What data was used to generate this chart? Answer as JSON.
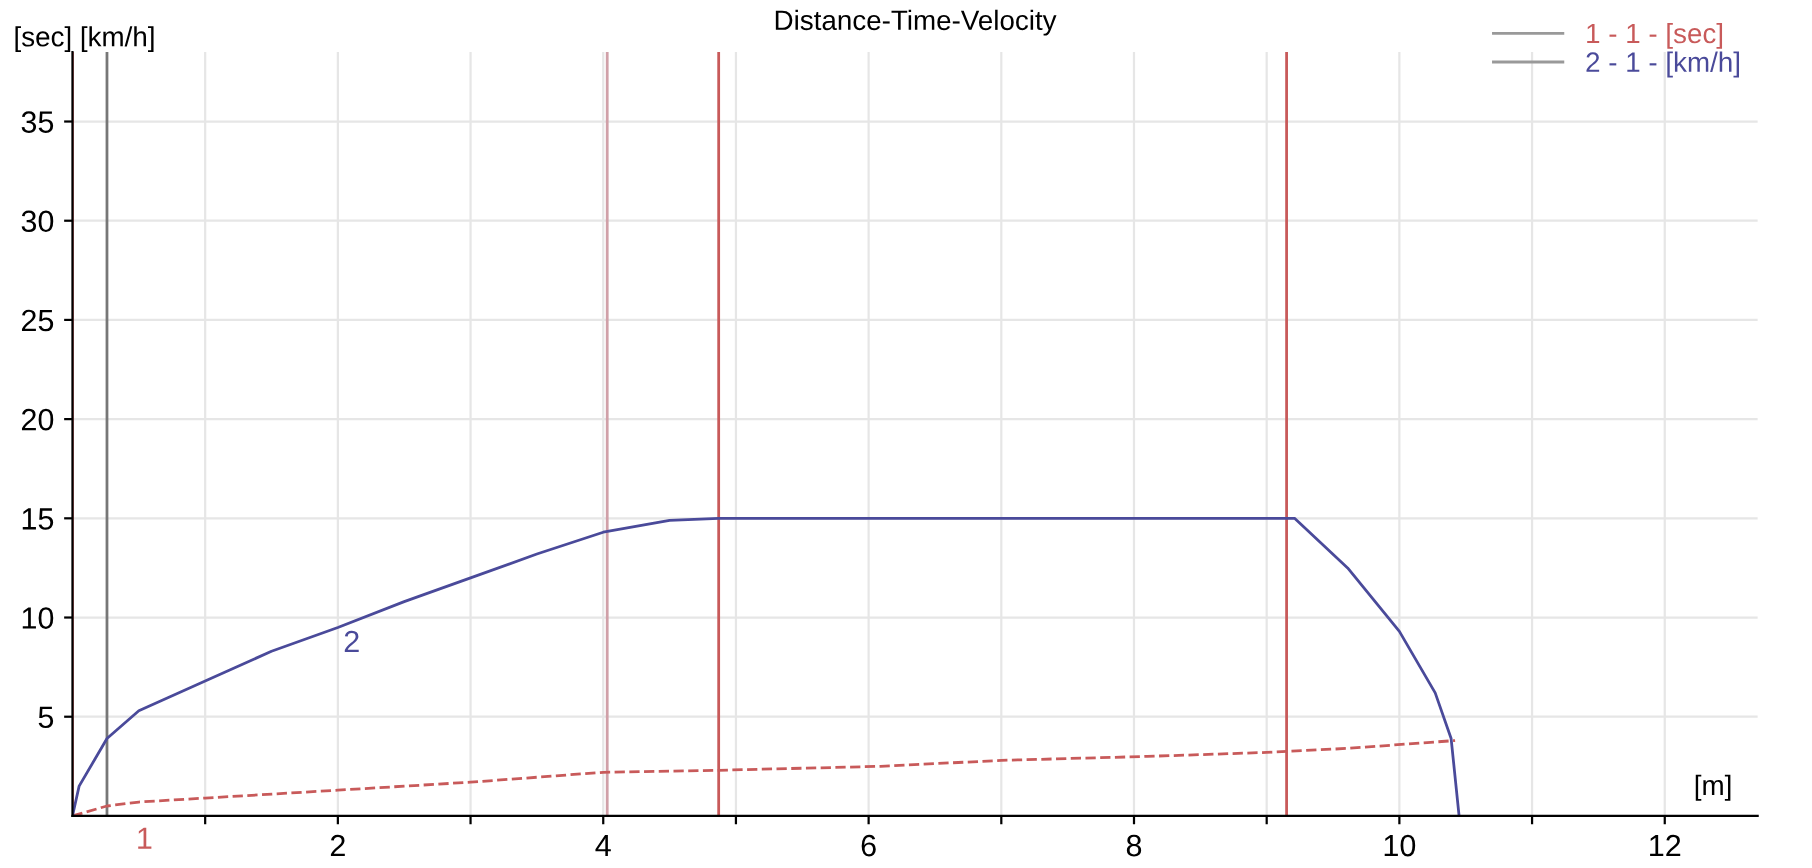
{
  "chart_data": {
    "type": "line",
    "title": "Distance-Time-Velocity",
    "xlabel": "[m]",
    "ylabel": "[sec] [km/h]",
    "series": [
      {
        "name": "1 - 1 - [sec]",
        "color": "#c85a5a",
        "line_style": "dashed",
        "x": [
          0,
          0.26,
          0.5,
          1,
          2,
          3,
          4,
          4.87,
          6.09,
          7,
          8.1,
          9.0,
          9.6,
          10.42
        ],
        "values": [
          0,
          0.5,
          0.7,
          0.9,
          1.3,
          1.7,
          2.2,
          2.3,
          2.5,
          2.8,
          3.0,
          3.2,
          3.4,
          3.8
        ]
      },
      {
        "name": "2 - 1 - [km/h]",
        "color": "#4a4a9a",
        "line_style": "solid",
        "x": [
          0,
          0.05,
          0.26,
          0.5,
          1,
          1.5,
          2,
          2.5,
          3,
          3.5,
          4,
          4.5,
          4.87,
          9.15,
          9.21,
          9.61,
          10.0,
          10.27,
          10.39,
          10.45
        ],
        "values": [
          0,
          1.5,
          3.9,
          5.3,
          6.8,
          8.3,
          9.5,
          10.8,
          12.0,
          13.2,
          14.3,
          14.9,
          15.0,
          15.0,
          15.0,
          12.5,
          9.3,
          6.2,
          3.9,
          0
        ]
      }
    ],
    "annotations": [
      "1",
      "2"
    ],
    "ref_lines": [
      {
        "axis": "x",
        "value": 0,
        "color": "#c85a5a"
      },
      {
        "axis": "x",
        "value": 0.26,
        "color": "#777777"
      },
      {
        "axis": "x",
        "value": 4.03,
        "color": "#d0a0a8"
      },
      {
        "axis": "x",
        "value": 4.87,
        "color": "#c85a5a"
      },
      {
        "axis": "x",
        "value": 9.15,
        "color": "#c85a5a"
      }
    ],
    "xlim": [
      0,
      12.7
    ],
    "ylim": [
      0,
      38.5
    ],
    "xticks": [
      {
        "value": 1,
        "label": null
      },
      2,
      {
        "value": 3,
        "label": null
      },
      4,
      {
        "value": 5,
        "label": null
      },
      6,
      {
        "value": 7,
        "label": null
      },
      8,
      {
        "value": 9,
        "label": null
      },
      10,
      {
        "value": 11,
        "label": null
      },
      12
    ],
    "yticks": [
      5,
      10,
      15,
      20,
      25,
      30,
      35
    ],
    "grid": true,
    "legend": "top right"
  }
}
